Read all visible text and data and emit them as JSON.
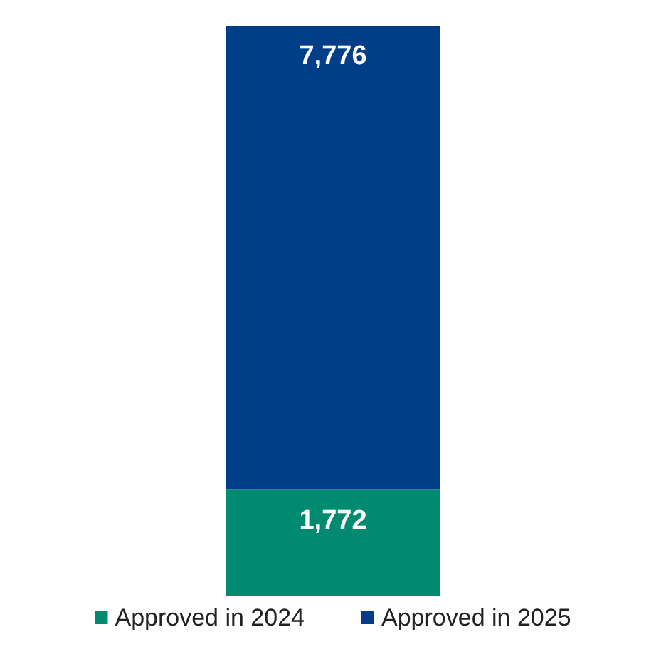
{
  "chart_data": {
    "type": "bar",
    "stacked": true,
    "categories": [
      null
    ],
    "series": [
      {
        "name": "Approved in 2024",
        "color": "#008a70",
        "values": [
          1772
        ],
        "value_labels": [
          "1,772"
        ]
      },
      {
        "name": "Approved in 2025",
        "color": "#003f87",
        "values": [
          7776
        ],
        "value_labels": [
          "7,776"
        ]
      }
    ],
    "legend": "bottom"
  }
}
